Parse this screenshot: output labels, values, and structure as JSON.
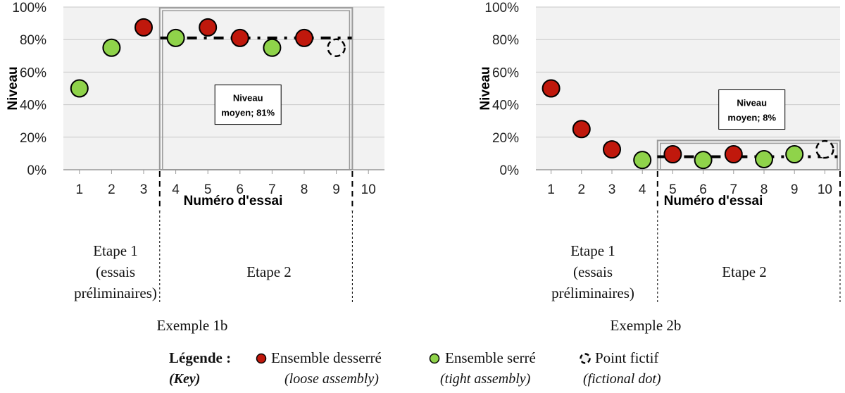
{
  "chart_data": [
    {
      "type": "scatter",
      "example_label": "Exemple 1b",
      "xlabel": "Numéro d'essai",
      "ylabel": "Niveau",
      "x_ticks": [
        "1",
        "2",
        "3",
        "4",
        "5",
        "6",
        "7",
        "8",
        "9",
        "10"
      ],
      "y_ticks": [
        "0%",
        "20%",
        "40%",
        "60%",
        "80%",
        "100%"
      ],
      "ylim": [
        0,
        100
      ],
      "xlim": [
        0.5,
        10.5
      ],
      "grid": true,
      "points": [
        {
          "x": 1,
          "y": 50,
          "kind": "serre"
        },
        {
          "x": 2,
          "y": 75,
          "kind": "serre"
        },
        {
          "x": 3,
          "y": 87.5,
          "kind": "desserre"
        },
        {
          "x": 4,
          "y": 81,
          "kind": "serre"
        },
        {
          "x": 5,
          "y": 87.5,
          "kind": "desserre"
        },
        {
          "x": 6,
          "y": 81,
          "kind": "desserre"
        },
        {
          "x": 7,
          "y": 75,
          "kind": "serre"
        },
        {
          "x": 8,
          "y": 81,
          "kind": "desserre"
        },
        {
          "x": 9,
          "y": 75,
          "kind": "fictif"
        }
      ],
      "mean_line": {
        "value": 81,
        "x_start": 4,
        "x_end": 9
      },
      "mean_box": {
        "line1": "Niveau",
        "line2": "moyen; 81%"
      },
      "stage_split_after": 3,
      "stage_end_after": 9,
      "stage1": {
        "line1": "Etape 1",
        "line2": "(essais",
        "line3": "préliminaires)"
      },
      "stage2": {
        "label": "Etape 2"
      }
    },
    {
      "type": "scatter",
      "example_label": "Exemple 2b",
      "xlabel": "Numéro d'essai",
      "ylabel": "Niveau",
      "x_ticks": [
        "1",
        "2",
        "3",
        "4",
        "5",
        "6",
        "7",
        "8",
        "9",
        "10"
      ],
      "y_ticks": [
        "0%",
        "20%",
        "40%",
        "60%",
        "80%",
        "100%"
      ],
      "ylim": [
        0,
        100
      ],
      "xlim": [
        0.5,
        10.5
      ],
      "grid": true,
      "points": [
        {
          "x": 1,
          "y": 50,
          "kind": "desserre"
        },
        {
          "x": 2,
          "y": 25,
          "kind": "desserre"
        },
        {
          "x": 3,
          "y": 12.5,
          "kind": "desserre"
        },
        {
          "x": 4,
          "y": 6,
          "kind": "serre"
        },
        {
          "x": 5,
          "y": 9.5,
          "kind": "desserre"
        },
        {
          "x": 6,
          "y": 6,
          "kind": "serre"
        },
        {
          "x": 7,
          "y": 9.5,
          "kind": "desserre"
        },
        {
          "x": 8,
          "y": 6.5,
          "kind": "serre"
        },
        {
          "x": 9,
          "y": 9.5,
          "kind": "serre"
        },
        {
          "x": 10,
          "y": 12.5,
          "kind": "fictif"
        }
      ],
      "mean_line": {
        "value": 8,
        "x_start": 5,
        "x_end": 10
      },
      "mean_box": {
        "line1": "Niveau",
        "line2": "moyen; 8%"
      },
      "stage_split_after": 4,
      "stage_end_after": 10,
      "stage1": {
        "line1": "Etape 1",
        "line2": "(essais",
        "line3": "préliminaires)"
      },
      "stage2": {
        "label": "Etape 2"
      }
    }
  ],
  "legend": {
    "title": "Légende :",
    "title_sub": "(Key)",
    "items": [
      {
        "kind": "desserre",
        "label": "Ensemble desserré",
        "sub": "(loose assembly)"
      },
      {
        "kind": "serre",
        "label": "Ensemble serré",
        "sub": "(tight assembly)"
      },
      {
        "kind": "fictif",
        "label": "Point fictif",
        "sub": "(fictional dot)"
      }
    ]
  },
  "colors": {
    "desserre": "#c0180c",
    "serre": "#8fd34a",
    "fictif": "#f2f2f2",
    "plot_bg": "#f2f2f2",
    "grid": "#c8c8c8",
    "box_outline": "#9a9a9a"
  }
}
